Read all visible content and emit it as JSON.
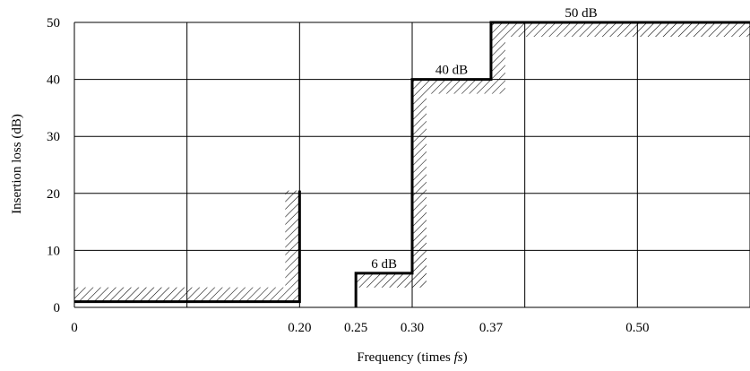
{
  "chart_data": {
    "type": "line",
    "xlabel_prefix": "Frequency (times ",
    "xlabel_var": "fs",
    "xlabel_suffix": ")",
    "ylabel": "Insertion loss (dB)",
    "xlim": [
      0,
      0.6
    ],
    "ylim": [
      0,
      50
    ],
    "grid": true,
    "x_ticks": [
      {
        "value": 0,
        "label": "0"
      },
      {
        "value": 0.2,
        "label": "0.20"
      },
      {
        "value": 0.25,
        "label": "0.25"
      },
      {
        "value": 0.3,
        "label": "0.30"
      },
      {
        "value": 0.37,
        "label": "0.37"
      },
      {
        "value": 0.5,
        "label": "0.50"
      }
    ],
    "x_gridlines": [
      0,
      0.1,
      0.2,
      0.3,
      0.4,
      0.5,
      0.6
    ],
    "y_ticks": [
      0,
      10,
      20,
      30,
      40,
      50
    ],
    "passband_limit": {
      "x": [
        0,
        0.2,
        0.2
      ],
      "y": [
        1,
        1,
        20.5
      ]
    },
    "stopband_limit": {
      "x": [
        0.25,
        0.25,
        0.3,
        0.3,
        0.37,
        0.37,
        0.6
      ],
      "y": [
        0,
        6,
        6,
        40,
        40,
        50,
        50
      ]
    },
    "annotations": [
      {
        "text": "6 dB",
        "x": 0.275,
        "y": 6
      },
      {
        "text": "40 dB",
        "x": 0.335,
        "y": 40
      },
      {
        "text": "50 dB",
        "x": 0.45,
        "y": 50
      }
    ]
  }
}
